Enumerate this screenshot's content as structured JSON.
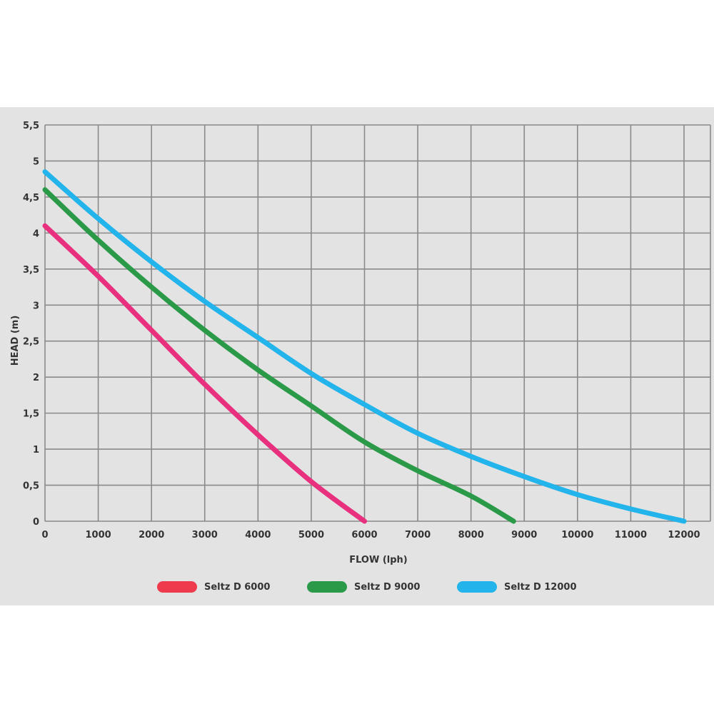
{
  "chart_data": {
    "type": "line",
    "title": "",
    "xlabel": "FLOW (lph)",
    "ylabel": "HEAD (m)",
    "xlim": [
      0,
      12500
    ],
    "ylim": [
      0,
      5.5
    ],
    "x_ticks": [
      "0",
      "1000",
      "2000",
      "3000",
      "4000",
      "5000",
      "6000",
      "7000",
      "8000",
      "9000",
      "10000",
      "11000",
      "12000"
    ],
    "y_ticks": [
      "0",
      "0,5",
      "1",
      "1,5",
      "2",
      "2,5",
      "3",
      "3,5",
      "4",
      "4,5",
      "5",
      "5,5"
    ],
    "grid": true,
    "legend_position": "bottom",
    "series": [
      {
        "name": "Seltz D 6000",
        "color": "#e8307e",
        "legend_color": "#ee3a4c",
        "points": [
          [
            0,
            4.1
          ],
          [
            1000,
            3.4
          ],
          [
            2000,
            2.65
          ],
          [
            3000,
            1.9
          ],
          [
            4000,
            1.2
          ],
          [
            5000,
            0.55
          ],
          [
            6000,
            0.0
          ]
        ]
      },
      {
        "name": "Seltz D 9000",
        "color": "#2a9a48",
        "legend_color": "#2a9a48",
        "points": [
          [
            0,
            4.6
          ],
          [
            1000,
            3.9
          ],
          [
            2000,
            3.25
          ],
          [
            3000,
            2.65
          ],
          [
            4000,
            2.1
          ],
          [
            5000,
            1.6
          ],
          [
            6000,
            1.1
          ],
          [
            7000,
            0.7
          ],
          [
            8000,
            0.35
          ],
          [
            8800,
            0.0
          ]
        ]
      },
      {
        "name": "Seltz D 12000",
        "color": "#22b4ea",
        "legend_color": "#22b4ea",
        "points": [
          [
            0,
            4.85
          ],
          [
            1000,
            4.2
          ],
          [
            2000,
            3.6
          ],
          [
            3000,
            3.05
          ],
          [
            4000,
            2.55
          ],
          [
            5000,
            2.05
          ],
          [
            6000,
            1.62
          ],
          [
            7000,
            1.22
          ],
          [
            8000,
            0.9
          ],
          [
            9000,
            0.62
          ],
          [
            10000,
            0.37
          ],
          [
            11000,
            0.17
          ],
          [
            12000,
            0.0
          ]
        ]
      }
    ]
  }
}
